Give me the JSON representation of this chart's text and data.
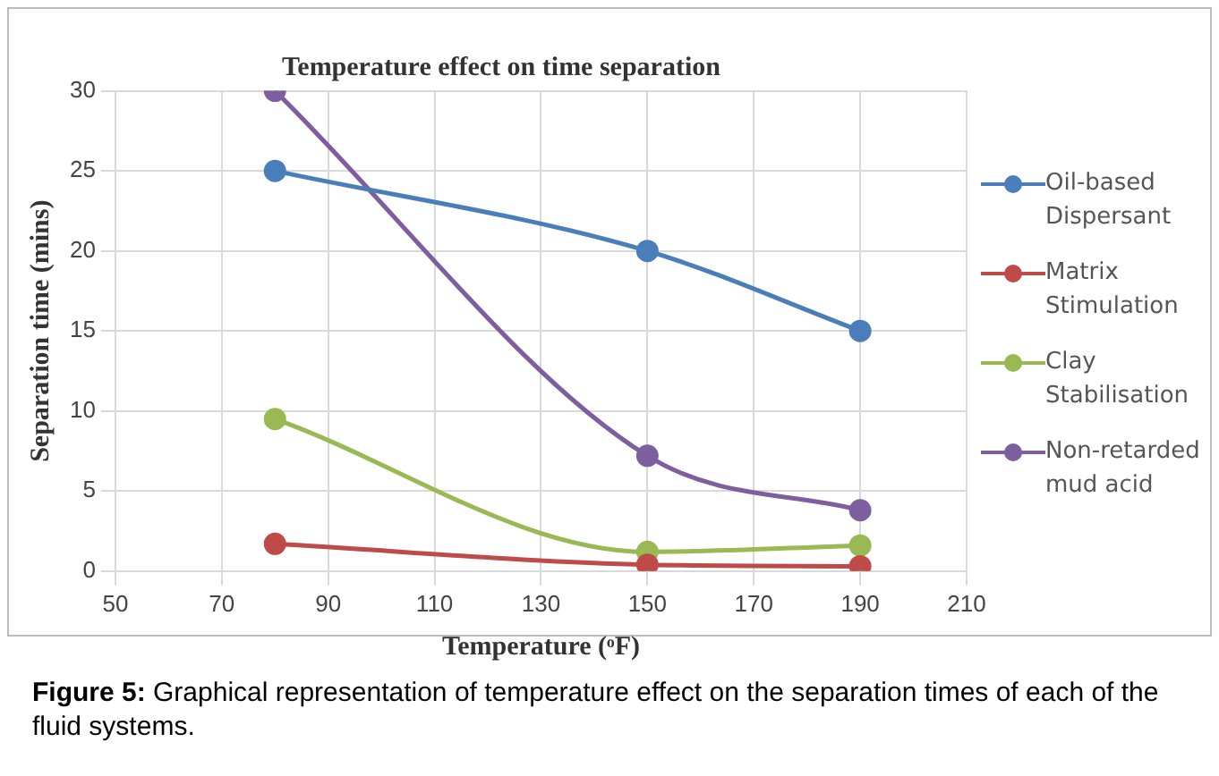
{
  "chart_data": {
    "type": "line",
    "title": "Temperature effect on time separation",
    "xlabel": "Temperature (ᵒF)",
    "ylabel": "Separation time (mins)",
    "x": [
      80,
      150,
      190
    ],
    "series": [
      {
        "name": "Oil-based Dispersant",
        "color": "#4a7ebb",
        "values": [
          25,
          20,
          15
        ]
      },
      {
        "name": "Matrix Stimulation",
        "color": "#be4b48",
        "values": [
          1.7,
          0.4,
          0.3
        ]
      },
      {
        "name": "Clay Stabilisation",
        "color": "#98b954",
        "values": [
          9.5,
          1.2,
          1.6
        ]
      },
      {
        "name": "Non-retarded mud acid",
        "color": "#7d5fa0",
        "values": [
          30,
          7.2,
          3.8
        ]
      }
    ],
    "xlim": [
      50,
      210
    ],
    "xticks": [
      50,
      70,
      90,
      110,
      130,
      150,
      170,
      190,
      210
    ],
    "ylim": [
      0,
      30
    ],
    "yticks": [
      0,
      5,
      10,
      15,
      20,
      25,
      30
    ],
    "grid": true,
    "legend": "right",
    "marker": "circle",
    "line_style": "solid",
    "annotations": [
      "Figure 5: Graphical representation of temperature effect on the separation times of each of the fluid systems."
    ]
  }
}
